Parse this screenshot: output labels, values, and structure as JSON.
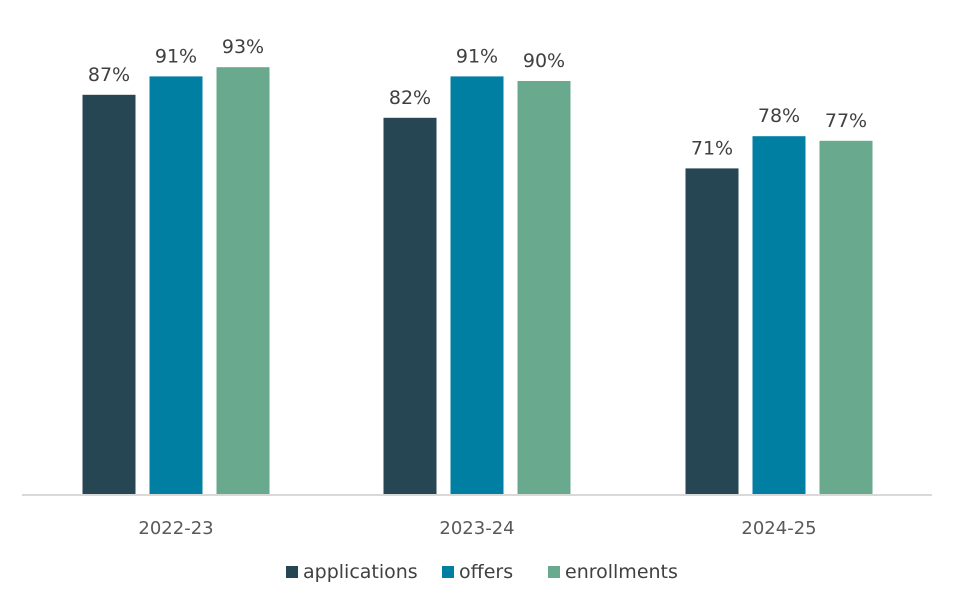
{
  "chart_data": {
    "type": "bar",
    "categories": [
      "2022-23",
      "2023-24",
      "2024-25"
    ],
    "series": [
      {
        "name": "applications",
        "values": [
          87,
          82,
          71
        ],
        "labels": [
          "87%",
          "82%",
          "71%"
        ],
        "color": "#264653"
      },
      {
        "name": "offers",
        "values": [
          91,
          91,
          78
        ],
        "labels": [
          "91%",
          "91%",
          "78%"
        ],
        "color": "#007fa3"
      },
      {
        "name": "enrollments",
        "values": [
          93,
          90,
          77
        ],
        "labels": [
          "93%",
          "90%",
          "77%"
        ],
        "color": "#69aa8f"
      }
    ],
    "ylim": [
      0,
      100
    ],
    "grid": false,
    "legend_position": "bottom"
  },
  "colors": {
    "axis": "#d9d9d9"
  }
}
